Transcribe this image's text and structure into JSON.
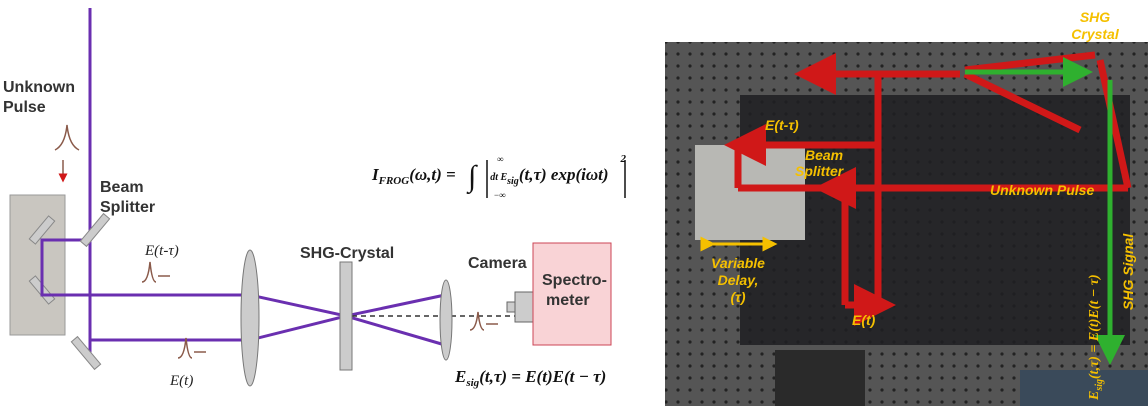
{
  "diagram": {
    "title_lines": [
      "Unknown",
      "Pulse"
    ],
    "beam_splitter_lines": [
      "Beam",
      "Splitter"
    ],
    "delayed_field": "E(t-τ)",
    "field": "E(t)",
    "crystal": "SHG-Crystal",
    "camera": "Camera",
    "spectrometer_lines": [
      "Spectro-",
      "meter"
    ],
    "frog_formula": {
      "lhs": "I",
      "lhs_sub": "FROG",
      "lhs_args": "(ω,t) = ",
      "integral": "∫",
      "lower": "−∞",
      "upper": "∞",
      "body": "dt E",
      "body_sub": "sig",
      "body_rest": "(t,τ) exp(iωt)",
      "power": "2"
    },
    "sig_formula": {
      "lhs": "E",
      "lhs_sub": "sig",
      "rest": "(t,τ) = E(t)E(t − τ)"
    }
  },
  "photo": {
    "crystal_lines": [
      "SHG",
      "Crystal"
    ],
    "delayed_field": "E(t-τ)",
    "beam_splitter_lines": [
      "Beam",
      "Splitter"
    ],
    "unknown_pulse": "Unknown Pulse",
    "delay_lines": [
      "Variable",
      "Delay,",
      "(τ)"
    ],
    "field": "E(t)",
    "signal": "SHG Signal",
    "sig_formula": {
      "lhs": "E",
      "lhs_sub": "sig",
      "rest": "(t,τ) = E(t)E(t − τ)"
    }
  }
}
